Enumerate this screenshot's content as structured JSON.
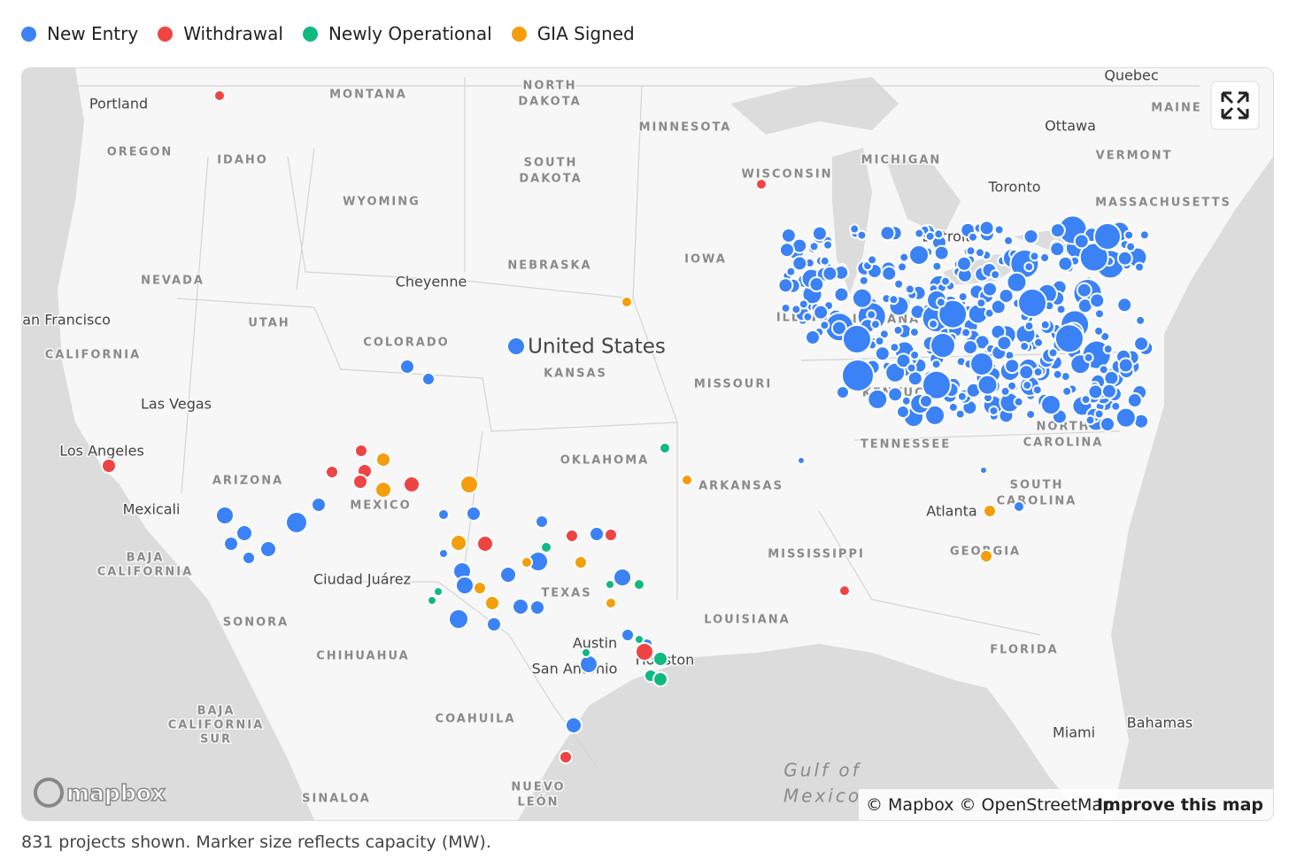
{
  "legend": [
    {
      "name": "New Entry",
      "color": "#3b82f6"
    },
    {
      "name": "Withdrawal",
      "color": "#ef4444"
    },
    {
      "name": "Newly Operational",
      "color": "#10b981"
    },
    {
      "name": "GIA Signed",
      "color": "#f59e0b"
    }
  ],
  "map": {
    "labels": [
      "Portland",
      "MONTANA",
      "NORTH",
      "DAKOTA",
      "MINNESOTA",
      "Quebec",
      "MAINE",
      "Ottawa",
      "OREGON",
      "IDAHO",
      "SOUTH",
      "DAKOTA",
      "WISCONSIN",
      "MICHIGAN",
      "VERMONT",
      "Toronto",
      "WYOMING",
      "MASSACHUSETTS",
      "Detroit",
      "NEBRASKA",
      "IOWA",
      "NEVADA",
      "Cheyenne",
      "ILLINOIS",
      "INDIANA",
      "San Francisco",
      "UTAH",
      "COLORADO",
      "CALIFORNIA",
      "KANSAS",
      "MISSOURI",
      "KENTUCKY",
      "Las Vegas",
      "NORTH",
      "CAROLINA",
      "TENNESSEE",
      "Los Angeles",
      "OKLAHOMA",
      "ARIZONA",
      "ARKANSAS",
      "SOUTH",
      "CAROLINA",
      "MEXICO",
      "Mexicali",
      "Atlanta",
      "BAJA",
      "CALIFORNIA",
      "MISSISSIPPI",
      "GEORGIA",
      "Ciudad Juárez",
      "TEXAS",
      "LOUISIANA",
      "SONORA",
      "Austin",
      "Houston",
      "CHIHUAHUA",
      "FLORIDA",
      "San Antonio",
      "BAJA",
      "CALIFORNIA",
      "SUR",
      "COAHUILA",
      "Bahamas",
      "Miami",
      "Gulf of",
      "Mexico",
      "NUEVO",
      "LEÓN",
      "SINALOA",
      "United States"
    ],
    "logo": "mapbox",
    "attribution": "© Mapbox © OpenStreetMap",
    "improve": "Improve this map"
  },
  "footer": "831 projects shown. Marker size reflects capacity (MW)."
}
